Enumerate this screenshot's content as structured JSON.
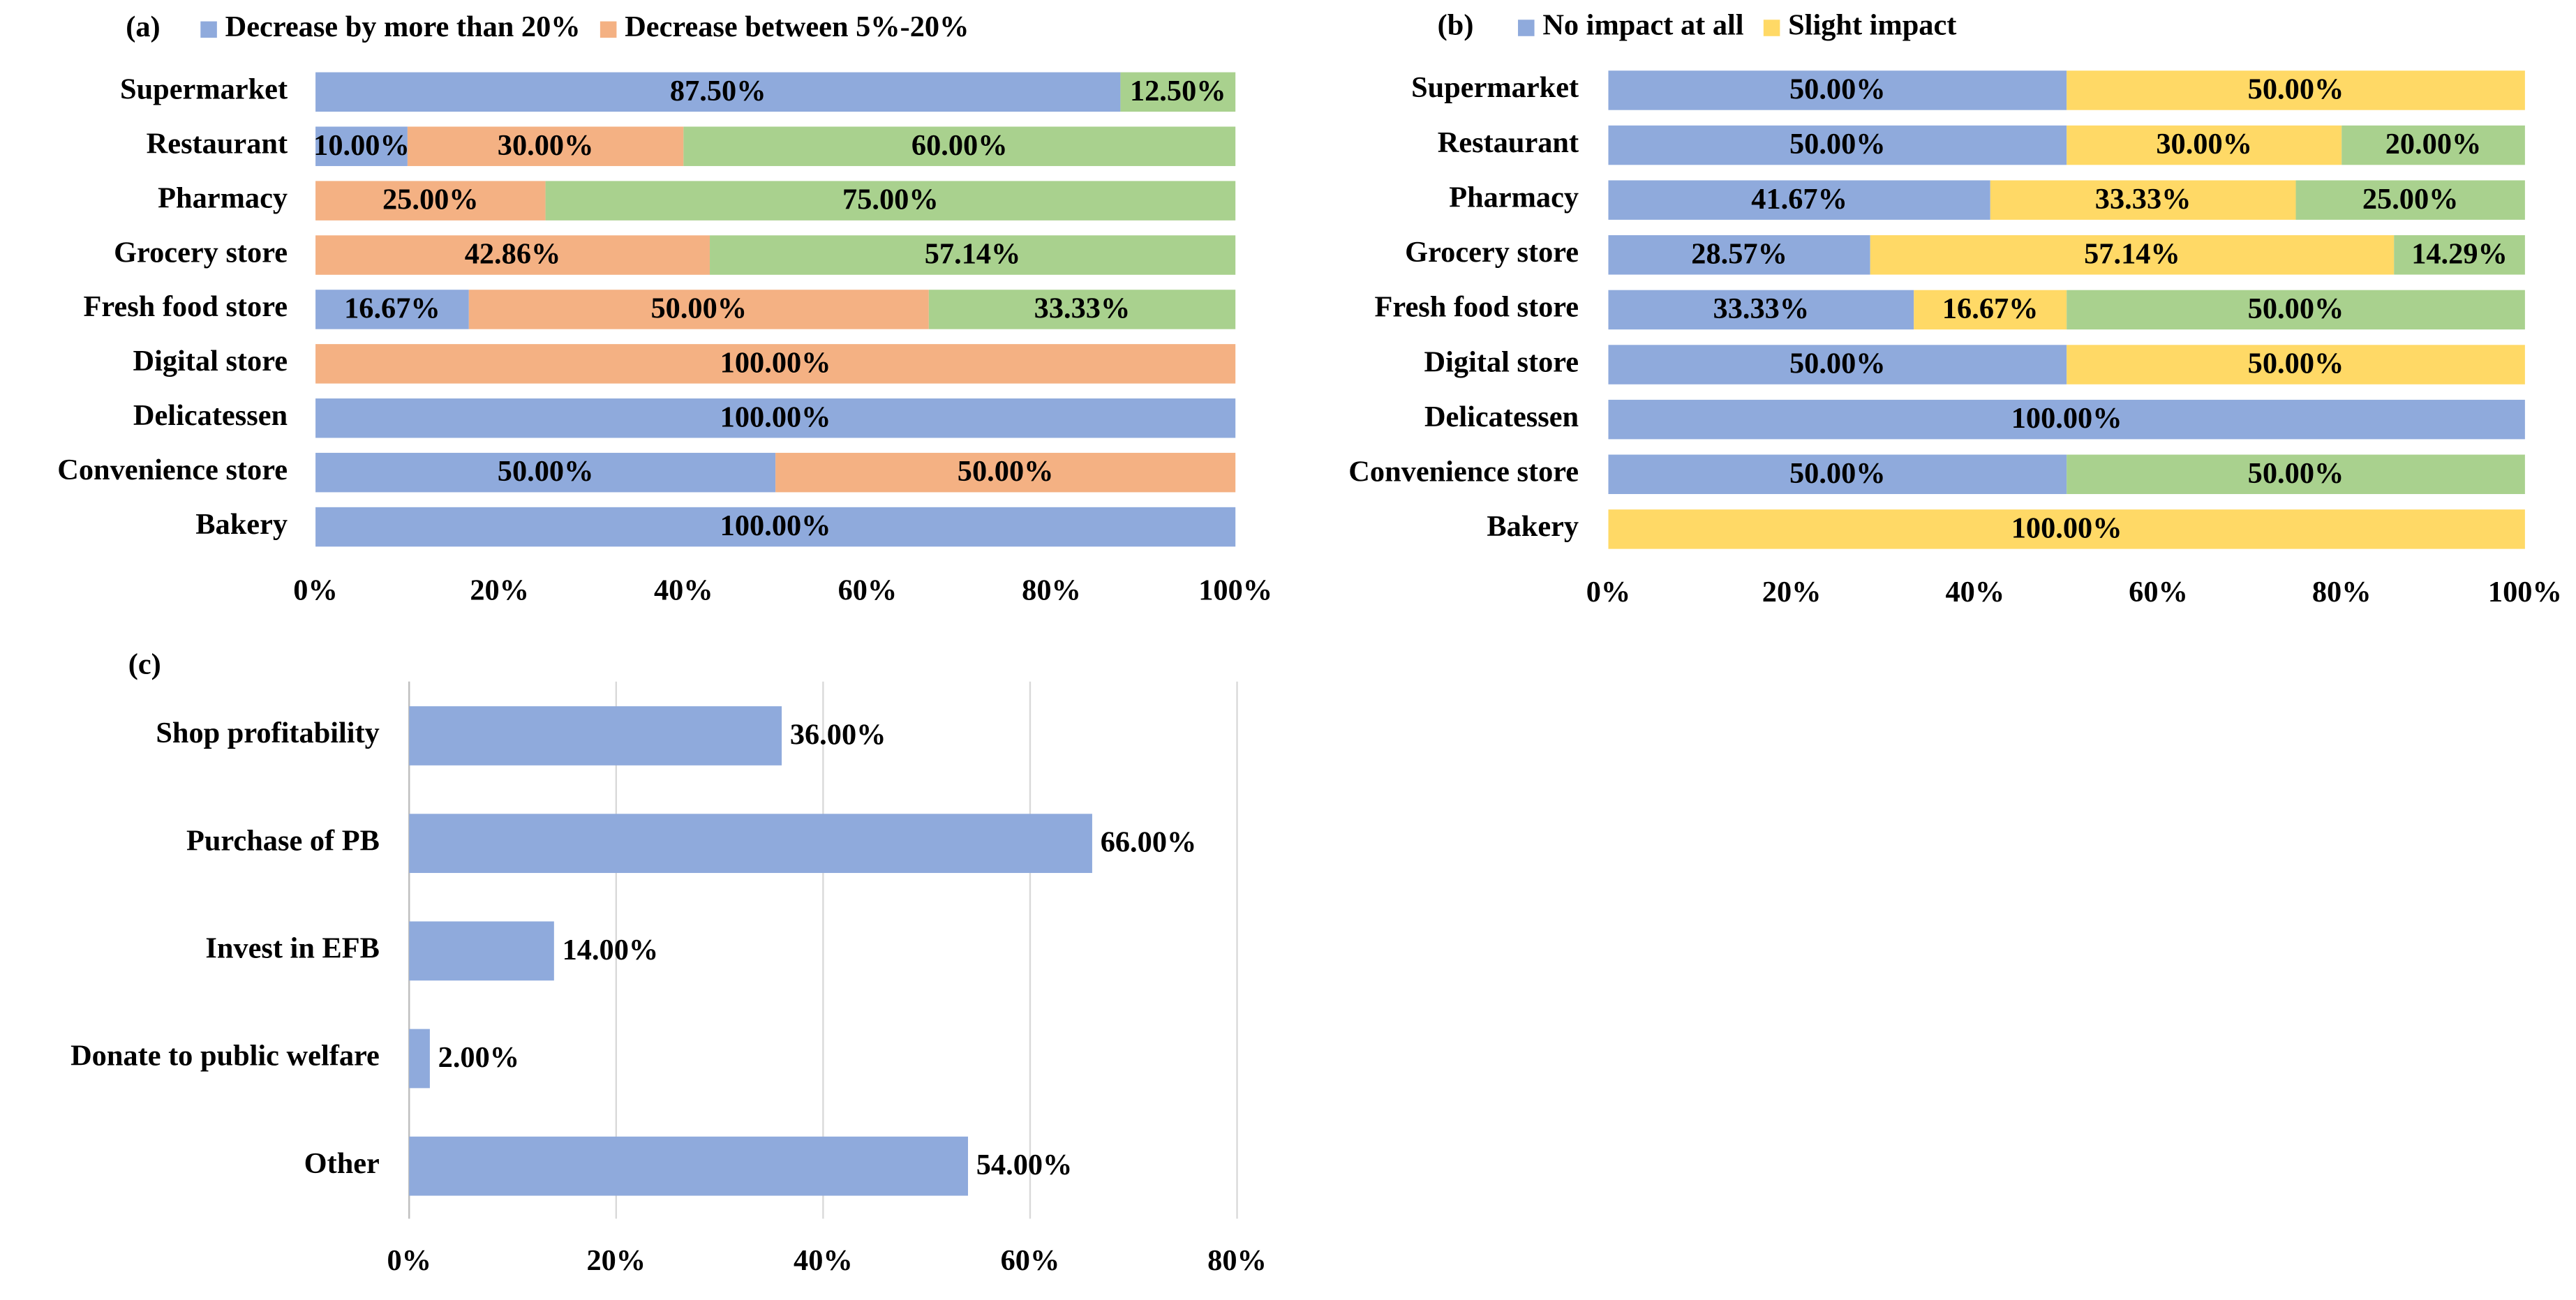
{
  "chart_data": [
    {
      "type": "stacked_bar",
      "title": "(a)",
      "categories": [
        "Supermarket",
        "Restaurant",
        "Pharmacy",
        "Grocery store",
        "Fresh food store",
        "Digital store",
        "Delicatessen",
        "Convenience store",
        "Bakery"
      ],
      "series": [
        {
          "name": "Decrease by more than 20%",
          "color": "#8faadc",
          "values": [
            87.5,
            10,
            null,
            null,
            16.67,
            null,
            100,
            50,
            100
          ],
          "value_labels": [
            "87.50%",
            "10.00%",
            null,
            null,
            "16.67%",
            null,
            "100.00%",
            "50.00%",
            "100.00%"
          ]
        },
        {
          "name": "Decrease between 5%-20%",
          "color": "#f4b183",
          "values": [
            null,
            30,
            25,
            42.86,
            50,
            100,
            null,
            50,
            null
          ],
          "value_labels": [
            null,
            "30.00%",
            "25.00%",
            "42.86%",
            "50.00%",
            "100.00%",
            null,
            "50.00%",
            null
          ]
        },
        {
          "color": "#a9d18e",
          "values": [
            12.5,
            60,
            75,
            57.14,
            33.33,
            null,
            null,
            null,
            null
          ],
          "value_labels": [
            "12.50%",
            "60.00%",
            "75.00%",
            "57.14%",
            "33.33%",
            null,
            null,
            null,
            null
          ]
        }
      ],
      "xlim": [
        0,
        100
      ],
      "xticks": [
        {
          "value": 0,
          "label": "0%"
        },
        {
          "value": 20,
          "label": "20%"
        },
        {
          "value": 40,
          "label": "40%"
        },
        {
          "value": 60,
          "label": "60%"
        },
        {
          "value": 80,
          "label": "80%"
        },
        {
          "value": 100,
          "label": "100%"
        }
      ],
      "grid": false
    },
    {
      "type": "stacked_bar",
      "title": "(b)",
      "categories": [
        "Supermarket",
        "Restaurant",
        "Pharmacy",
        "Grocery store",
        "Fresh food store",
        "Digital store",
        "Delicatessen",
        "Convenience store",
        "Bakery"
      ],
      "series": [
        {
          "name": "No impact at all",
          "color": "#8faadc",
          "values": [
            50,
            50,
            41.67,
            28.57,
            33.33,
            50,
            100,
            50,
            null
          ],
          "value_labels": [
            "50.00%",
            "50.00%",
            "41.67%",
            "28.57%",
            "33.33%",
            "50.00%",
            "100.00%",
            "50.00%",
            null
          ]
        },
        {
          "name": "Slight impact",
          "color": "#ffd966",
          "values": [
            50,
            30,
            33.33,
            57.14,
            16.67,
            50,
            null,
            null,
            100
          ],
          "value_labels": [
            "50.00%",
            "30.00%",
            "33.33%",
            "57.14%",
            "16.67%",
            "50.00%",
            null,
            null,
            "100.00%"
          ]
        },
        {
          "color": "#a9d18e",
          "values": [
            null,
            20,
            25,
            14.29,
            50,
            null,
            null,
            50,
            null
          ],
          "value_labels": [
            null,
            "20.00%",
            "25.00%",
            "14.29%",
            "50.00%",
            null,
            null,
            "50.00%",
            null
          ]
        }
      ],
      "xlim": [
        0,
        100
      ],
      "xticks": [
        {
          "value": 0,
          "label": "0%"
        },
        {
          "value": 20,
          "label": "20%"
        },
        {
          "value": 40,
          "label": "40%"
        },
        {
          "value": 60,
          "label": "60%"
        },
        {
          "value": 80,
          "label": "80%"
        },
        {
          "value": 100,
          "label": "100%"
        }
      ],
      "grid": false
    },
    {
      "type": "bar",
      "title": "(c)",
      "categories": [
        "Shop profitability",
        "Purchase of PB",
        "Invest in EFB",
        "Donate to public welfare",
        "Other"
      ],
      "values": [
        36,
        66,
        14,
        2,
        54
      ],
      "value_labels": [
        "36.00%",
        "66.00%",
        "14.00%",
        "2.00%",
        "54.00%"
      ],
      "color": "#8faadc",
      "xlim": [
        0,
        80
      ],
      "xticks": [
        {
          "value": 0,
          "label": "0%"
        },
        {
          "value": 20,
          "label": "20%"
        },
        {
          "value": 40,
          "label": "40%"
        },
        {
          "value": 60,
          "label": "60%"
        },
        {
          "value": 80,
          "label": "80%"
        }
      ],
      "grid": true
    }
  ]
}
